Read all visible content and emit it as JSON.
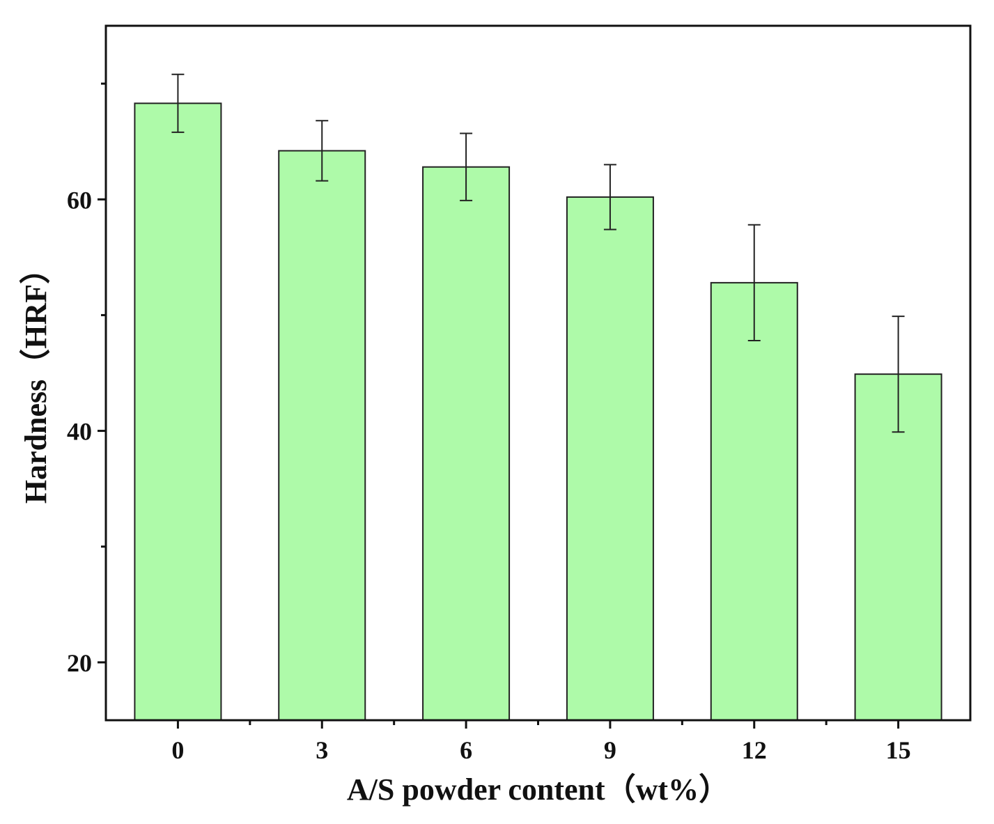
{
  "chart_data": {
    "type": "bar",
    "title": "",
    "xlabel": "A/S powder content（wt%）",
    "ylabel": "Hardness（HRF）",
    "categories": [
      "0",
      "3",
      "6",
      "9",
      "12",
      "15"
    ],
    "series": [
      {
        "values": [
          68.3,
          64.2,
          62.8,
          60.2,
          52.8,
          44.9
        ],
        "errors": [
          2.5,
          2.6,
          2.9,
          2.8,
          5.0,
          5.0
        ]
      }
    ],
    "ylim": [
      15,
      75
    ],
    "yticks": [
      20,
      40,
      60
    ],
    "grid": false,
    "legend": "none",
    "colors": {
      "bar_fill": "#aefaa9",
      "bar_stroke": "#222222",
      "axis": "#111111",
      "error_bar": "#222222"
    }
  }
}
